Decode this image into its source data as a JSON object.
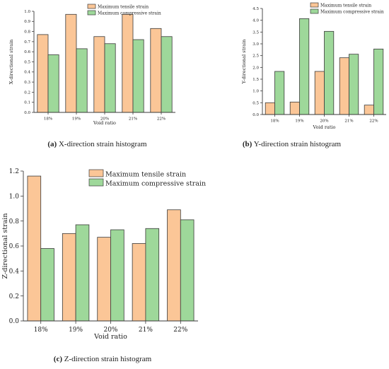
{
  "colors": {
    "tensile": "#FBC697",
    "compressive": "#9ED89A",
    "edge": "#3a3a3a"
  },
  "chart_data": [
    {
      "id": "a",
      "type": "bar",
      "caption_tag": "(a)",
      "caption_text": "X-direction strain histogram",
      "categories": [
        "18%",
        "19%",
        "20%",
        "21%",
        "22%"
      ],
      "series": [
        {
          "name": "Maximum tensile strain",
          "values": [
            0.77,
            0.97,
            0.75,
            0.97,
            0.83
          ]
        },
        {
          "name": "Maximum compressive strain",
          "values": [
            0.57,
            0.63,
            0.68,
            0.72,
            0.75
          ]
        }
      ],
      "ylim": [
        0,
        1.0
      ],
      "yticks": [
        "0.0",
        "0.1",
        "0.2",
        "0.3",
        "0.4",
        "0.5",
        "0.6",
        "0.7",
        "0.8",
        "0.9",
        "1.0"
      ],
      "xlabel": "Void ratio",
      "ylabel": "X-directional strain",
      "legend": "top-right"
    },
    {
      "id": "b",
      "type": "bar",
      "caption_tag": "(b)",
      "caption_text": "Y-direction strain histogram",
      "categories": [
        "18%",
        "19%",
        "20%",
        "21%",
        "22%"
      ],
      "series": [
        {
          "name": "Maximum tensile strain",
          "values": [
            0.5,
            0.53,
            1.83,
            2.41,
            0.4
          ]
        },
        {
          "name": "Maximum compressive strain",
          "values": [
            1.83,
            4.07,
            3.53,
            2.56,
            2.78
          ]
        }
      ],
      "ylim": [
        0,
        4.5
      ],
      "yticks": [
        "0.0",
        "0.5",
        "1.0",
        "1.5",
        "2.0",
        "2.5",
        "3.0",
        "3.5",
        "4.0",
        "4.5"
      ],
      "xlabel": "Void ratio",
      "ylabel": "Y-directional strain",
      "legend": "top-right"
    },
    {
      "id": "c",
      "type": "bar",
      "caption_tag": "(c)",
      "caption_text": "Z-direction strain histogram",
      "categories": [
        "18%",
        "19%",
        "20%",
        "21%",
        "22%"
      ],
      "series": [
        {
          "name": "Maximum tensile strain",
          "values": [
            1.16,
            0.7,
            0.67,
            0.62,
            0.89
          ]
        },
        {
          "name": "Maximum compressive strain",
          "values": [
            0.58,
            0.77,
            0.73,
            0.74,
            0.81
          ]
        }
      ],
      "ylim": [
        0,
        1.2
      ],
      "yticks": [
        "0.0",
        "0.2",
        "0.4",
        "0.6",
        "0.8",
        "1.0",
        "1.2"
      ],
      "xlabel": "Void ratio",
      "ylabel": "Z-directional strain",
      "legend": "top-right"
    }
  ]
}
